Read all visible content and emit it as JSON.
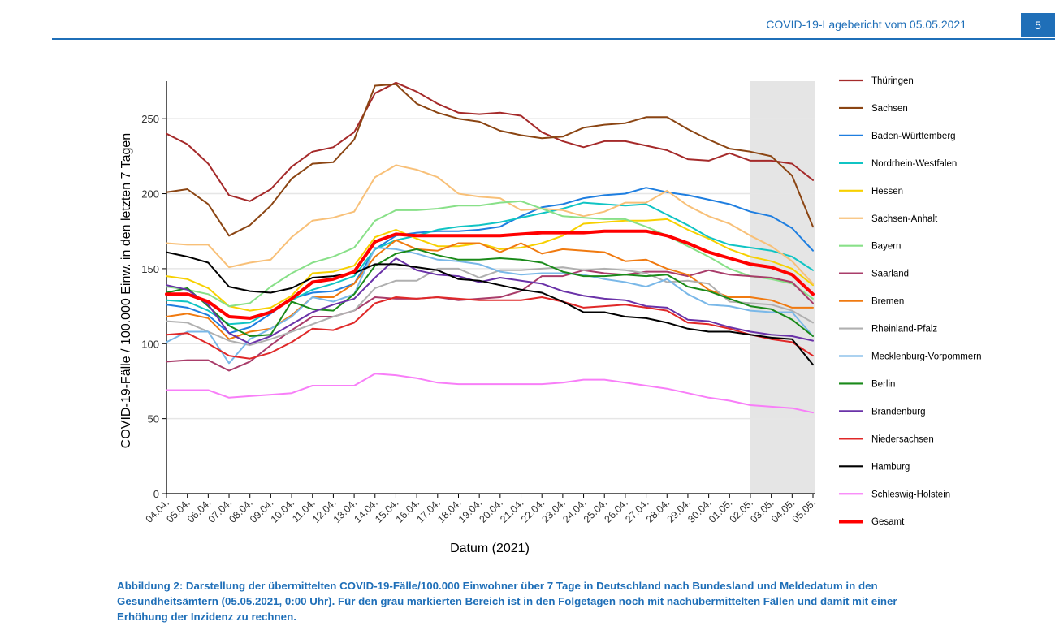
{
  "header": {
    "title": "COVID-19-Lagebericht vom 05.05.2021",
    "page_number": "5"
  },
  "caption": "Abbildung 2: Darstellung der übermittelten COVID-19-Fälle/100.000 Einwohner über 7 Tage in Deutschland nach Bundesland und Meldedatum in den Gesundheitsämtern (05.05.2021, 0:00 Uhr). Für den grau markierten Bereich ist in den Folgetagen noch mit nachübermittelten Fällen und damit mit einer Erhöhung der Inzidenz zu rechnen.",
  "chart_data": {
    "type": "line",
    "xlabel": "Datum (2021)",
    "ylabel": "COVID-19-Fälle / 100.000 Einw. in den letzten 7 Tagen",
    "ylim": [
      0,
      275
    ],
    "yticks": [
      0,
      50,
      100,
      150,
      200,
      250
    ],
    "grid": "horizontal",
    "legend_position": "right",
    "shaded_region": {
      "from": "02.05.",
      "to": "05.05.",
      "color": "#e5e5e5"
    },
    "x": [
      "04.04.",
      "05.04.",
      "06.04.",
      "07.04.",
      "08.04.",
      "09.04.",
      "10.04.",
      "11.04.",
      "12.04.",
      "13.04.",
      "14.04.",
      "15.04.",
      "16.04.",
      "17.04.",
      "18.04.",
      "19.04.",
      "20.04.",
      "21.04.",
      "22.04.",
      "23.04.",
      "24.04.",
      "25.04.",
      "26.04.",
      "27.04.",
      "28.04.",
      "29.04.",
      "30.04.",
      "01.05.",
      "02.05.",
      "03.05.",
      "04.05.",
      "05.05."
    ],
    "series": [
      {
        "name": "Thüringen",
        "color": "#a52a2a",
        "values": [
          240,
          233,
          220,
          199,
          195,
          203,
          218,
          228,
          231,
          241,
          267,
          274,
          268,
          260,
          254,
          253,
          254,
          252,
          241,
          235,
          231,
          235,
          235,
          232,
          229,
          223,
          222,
          227,
          222,
          222,
          220,
          209
        ]
      },
      {
        "name": "Sachsen",
        "color": "#8b4513",
        "values": [
          201,
          203,
          193,
          172,
          179,
          192,
          210,
          220,
          221,
          236,
          272,
          273,
          260,
          254,
          250,
          248,
          242,
          239,
          237,
          238,
          244,
          246,
          247,
          251,
          251,
          243,
          236,
          230,
          228,
          225,
          212,
          178
        ]
      },
      {
        "name": "Baden-Württemberg",
        "color": "#1e7ee0",
        "values": [
          126,
          124,
          119,
          107,
          111,
          120,
          130,
          134,
          135,
          140,
          163,
          172,
          174,
          175,
          175,
          176,
          178,
          185,
          191,
          193,
          197,
          199,
          200,
          204,
          201,
          199,
          196,
          193,
          188,
          185,
          177,
          162
        ]
      },
      {
        "name": "Nordrhein-Westfalen",
        "color": "#10c4c4",
        "values": [
          129,
          128,
          122,
          113,
          114,
          122,
          129,
          136,
          140,
          145,
          163,
          169,
          172,
          176,
          178,
          179,
          181,
          184,
          187,
          190,
          194,
          193,
          192,
          193,
          186,
          179,
          171,
          166,
          164,
          162,
          158,
          149
        ]
      },
      {
        "name": "Hessen",
        "color": "#f7d000",
        "values": [
          145,
          143,
          137,
          125,
          122,
          124,
          132,
          147,
          148,
          152,
          171,
          176,
          170,
          165,
          165,
          167,
          163,
          164,
          167,
          172,
          180,
          181,
          182,
          182,
          183,
          176,
          170,
          163,
          158,
          155,
          150,
          139
        ]
      },
      {
        "name": "Sachsen-Anhalt",
        "color": "#f8c078",
        "values": [
          167,
          166,
          166,
          151,
          154,
          156,
          171,
          182,
          184,
          188,
          211,
          219,
          216,
          211,
          200,
          198,
          197,
          189,
          190,
          189,
          185,
          188,
          194,
          194,
          202,
          192,
          185,
          180,
          172,
          165,
          155,
          140
        ]
      },
      {
        "name": "Bayern",
        "color": "#88e088",
        "values": [
          138,
          136,
          133,
          125,
          127,
          138,
          147,
          154,
          158,
          164,
          182,
          189,
          189,
          190,
          192,
          192,
          194,
          195,
          190,
          185,
          184,
          183,
          183,
          178,
          172,
          165,
          158,
          150,
          145,
          143,
          140,
          130
        ]
      },
      {
        "name": "Saarland",
        "color": "#a93c6a",
        "values": [
          88,
          89,
          89,
          82,
          88,
          99,
          109,
          118,
          118,
          122,
          131,
          130,
          130,
          131,
          129,
          130,
          131,
          135,
          145,
          145,
          149,
          147,
          146,
          148,
          148,
          145,
          149,
          146,
          145,
          144,
          141,
          127
        ]
      },
      {
        "name": "Bremen",
        "color": "#f07a10",
        "values": [
          118,
          120,
          117,
          103,
          108,
          110,
          119,
          131,
          131,
          140,
          158,
          169,
          163,
          162,
          167,
          167,
          161,
          167,
          160,
          163,
          162,
          161,
          155,
          156,
          150,
          146,
          136,
          131,
          131,
          129,
          124,
          124
        ]
      },
      {
        "name": "Rheinland-Pfalz",
        "color": "#b0b0b0",
        "values": [
          115,
          114,
          108,
          102,
          99,
          103,
          108,
          113,
          118,
          122,
          137,
          142,
          142,
          150,
          150,
          144,
          149,
          149,
          150,
          151,
          149,
          150,
          149,
          147,
          141,
          142,
          140,
          128,
          127,
          126,
          122,
          114
        ]
      },
      {
        "name": "Mecklenburg-Vorpommern",
        "color": "#7ab8e8",
        "values": [
          101,
          108,
          108,
          87,
          103,
          110,
          118,
          131,
          128,
          133,
          164,
          163,
          160,
          156,
          155,
          153,
          148,
          146,
          147,
          147,
          146,
          143,
          141,
          138,
          143,
          133,
          126,
          125,
          122,
          121,
          121,
          105
        ]
      },
      {
        "name": "Berlin",
        "color": "#1a8a1a",
        "values": [
          134,
          137,
          125,
          112,
          105,
          106,
          128,
          123,
          122,
          133,
          152,
          160,
          163,
          159,
          156,
          156,
          157,
          156,
          154,
          148,
          145,
          145,
          146,
          145,
          146,
          138,
          135,
          130,
          125,
          123,
          116,
          105
        ]
      },
      {
        "name": "Brandenburg",
        "color": "#6a32a8",
        "values": [
          139,
          136,
          126,
          107,
          100,
          105,
          113,
          121,
          126,
          130,
          144,
          157,
          149,
          146,
          145,
          141,
          144,
          142,
          140,
          135,
          132,
          130,
          129,
          125,
          124,
          116,
          115,
          111,
          108,
          106,
          105,
          102
        ]
      },
      {
        "name": "Niedersachsen",
        "color": "#e02828",
        "values": [
          106,
          107,
          100,
          92,
          90,
          94,
          101,
          110,
          109,
          114,
          127,
          131,
          130,
          131,
          130,
          129,
          129,
          129,
          131,
          128,
          124,
          125,
          126,
          124,
          122,
          114,
          113,
          110,
          106,
          103,
          101,
          92
        ]
      },
      {
        "name": "Hamburg",
        "color": "#000000",
        "values": [
          161,
          158,
          154,
          138,
          135,
          134,
          137,
          144,
          145,
          147,
          153,
          153,
          151,
          149,
          143,
          142,
          139,
          136,
          134,
          128,
          121,
          121,
          118,
          117,
          114,
          110,
          108,
          108,
          106,
          104,
          103,
          86
        ]
      },
      {
        "name": "Schleswig-Holstein",
        "color": "#f87ef8",
        "values": [
          69,
          69,
          69,
          64,
          65,
          66,
          67,
          72,
          72,
          72,
          80,
          79,
          77,
          74,
          73,
          73,
          73,
          73,
          73,
          74,
          76,
          76,
          74,
          72,
          70,
          67,
          64,
          62,
          59,
          58,
          57,
          54
        ]
      },
      {
        "name": "Gesamt",
        "color": "#ff0000",
        "bold": true,
        "values": [
          133,
          133,
          128,
          118,
          117,
          121,
          130,
          141,
          143,
          148,
          168,
          173,
          172,
          172,
          172,
          172,
          172,
          173,
          174,
          174,
          174,
          175,
          175,
          175,
          172,
          167,
          161,
          157,
          153,
          151,
          146,
          133
        ]
      }
    ]
  }
}
